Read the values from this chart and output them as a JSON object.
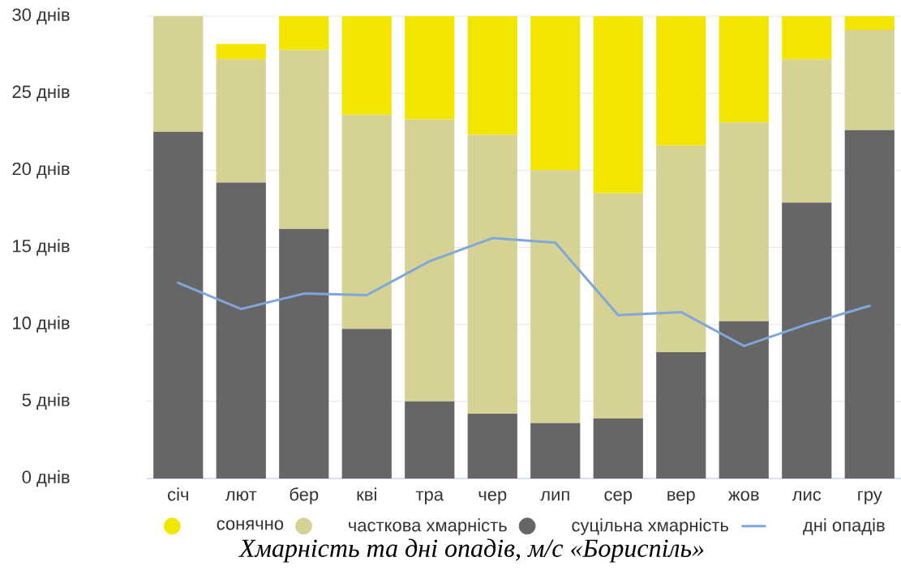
{
  "chart_data": {
    "type": "bar",
    "stacked": true,
    "categories": [
      "січ",
      "лют",
      "бер",
      "кві",
      "тра",
      "чер",
      "лип",
      "сер",
      "вер",
      "жов",
      "лис",
      "гру"
    ],
    "series": [
      {
        "name": "суцільна хмарність",
        "color": "#666666",
        "values": [
          22.5,
          19.2,
          16.2,
          9.7,
          5.0,
          4.2,
          3.6,
          3.9,
          8.2,
          10.2,
          17.9,
          22.6
        ]
      },
      {
        "name": "часткова хмарність",
        "color": "#d5d294",
        "values": [
          7.5,
          8.0,
          11.6,
          13.9,
          18.3,
          18.1,
          16.4,
          14.6,
          13.4,
          12.9,
          9.3,
          6.5
        ]
      },
      {
        "name": "сонячно",
        "color": "#f2e600",
        "values": [
          0,
          1.0,
          2.2,
          6.4,
          6.7,
          7.7,
          10.0,
          11.5,
          8.4,
          6.9,
          2.8,
          0.9
        ]
      },
      {
        "name": "дні опадів",
        "type": "line",
        "color": "#7fa8d9",
        "values": [
          12.7,
          11.0,
          12.0,
          11.9,
          14.1,
          15.6,
          15.3,
          10.6,
          10.8,
          8.6,
          10.0,
          11.2
        ]
      }
    ],
    "ylim": [
      0,
      30
    ],
    "yticks": [
      {
        "value": 0,
        "label": "0 днів"
      },
      {
        "value": 5,
        "label": "5 днів"
      },
      {
        "value": 10,
        "label": "10 днів"
      },
      {
        "value": 15,
        "label": "15 днів"
      },
      {
        "value": 20,
        "label": "20 днів"
      },
      {
        "value": 25,
        "label": "25 днів"
      },
      {
        "value": 30,
        "label": "30 днів"
      }
    ],
    "grid": "y",
    "legend": "bottom",
    "annotations": [
      "Хмарність та дні опадів, м/с «Бориспіль»"
    ]
  }
}
